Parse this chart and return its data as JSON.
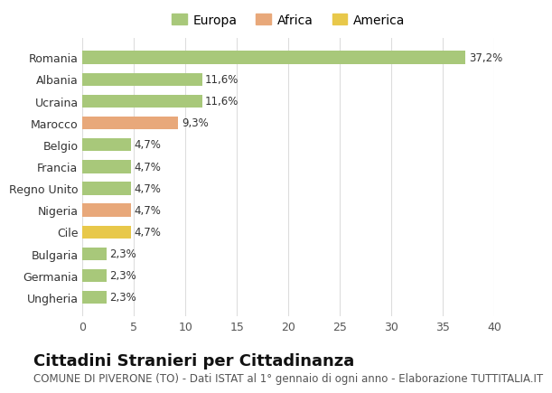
{
  "categories": [
    "Ungheria",
    "Germania",
    "Bulgaria",
    "Cile",
    "Nigeria",
    "Regno Unito",
    "Francia",
    "Belgio",
    "Marocco",
    "Ucraina",
    "Albania",
    "Romania"
  ],
  "values": [
    2.3,
    2.3,
    2.3,
    4.7,
    4.7,
    4.7,
    4.7,
    4.7,
    9.3,
    11.6,
    11.6,
    37.2
  ],
  "labels": [
    "2,3%",
    "2,3%",
    "2,3%",
    "4,7%",
    "4,7%",
    "4,7%",
    "4,7%",
    "4,7%",
    "9,3%",
    "11,6%",
    "11,6%",
    "37,2%"
  ],
  "colors": [
    "#a8c87a",
    "#a8c87a",
    "#a8c87a",
    "#e8c84a",
    "#e8a87a",
    "#a8c87a",
    "#a8c87a",
    "#a8c87a",
    "#e8a87a",
    "#a8c87a",
    "#a8c87a",
    "#a8c87a"
  ],
  "legend": [
    {
      "label": "Europa",
      "color": "#a8c87a"
    },
    {
      "label": "Africa",
      "color": "#e8a87a"
    },
    {
      "label": "America",
      "color": "#e8c84a"
    }
  ],
  "title": "Cittadini Stranieri per Cittadinanza",
  "subtitle": "COMUNE DI PIVERONE (TO) - Dati ISTAT al 1° gennaio di ogni anno - Elaborazione TUTTITALIA.IT",
  "xlim": [
    0,
    40
  ],
  "xticks": [
    0,
    5,
    10,
    15,
    20,
    25,
    30,
    35,
    40
  ],
  "background_color": "#ffffff",
  "grid_color": "#dddddd",
  "bar_height": 0.6,
  "title_fontsize": 13,
  "subtitle_fontsize": 8.5,
  "label_fontsize": 8.5,
  "tick_fontsize": 9,
  "legend_fontsize": 10
}
